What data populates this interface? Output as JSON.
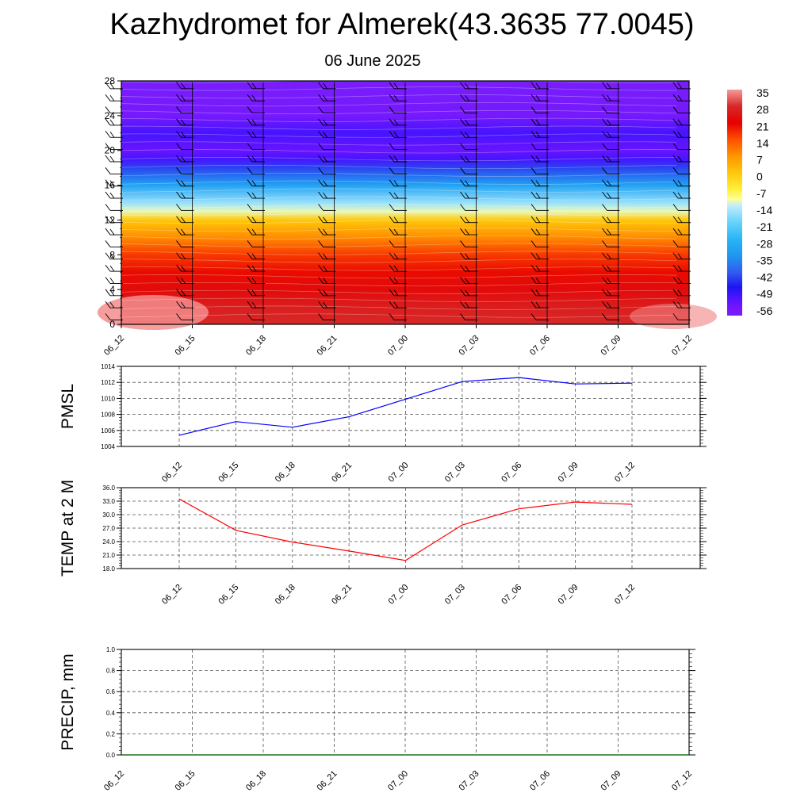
{
  "page": {
    "title": "Kazhydromet for Almerek(43.3635 77.0045)",
    "subtitle": "06 June 2025"
  },
  "time_labels": [
    "06_12",
    "06_15",
    "06_18",
    "06_21",
    "07_00",
    "07_03",
    "07_06",
    "07_09",
    "07_12"
  ],
  "chart_data": [
    {
      "type": "heatmap",
      "title": "",
      "xlabel": "",
      "ylabel": "",
      "x": [
        "06_12",
        "06_15",
        "06_18",
        "06_21",
        "07_00",
        "07_03",
        "07_06",
        "07_09",
        "07_12"
      ],
      "yticks": [
        0,
        4,
        8,
        12,
        16,
        20,
        24,
        28
      ],
      "ylim": [
        0,
        28
      ],
      "vertical_profile": [
        {
          "height": 0,
          "value": 28
        },
        {
          "height": 2,
          "value": 26
        },
        {
          "height": 4,
          "value": 23
        },
        {
          "height": 6,
          "value": 20
        },
        {
          "height": 8,
          "value": 16
        },
        {
          "height": 10,
          "value": 8
        },
        {
          "height": 12,
          "value": 0
        },
        {
          "height": 13,
          "value": -12
        },
        {
          "height": 14,
          "value": -17
        },
        {
          "height": 16,
          "value": -32
        },
        {
          "height": 18,
          "value": -44
        },
        {
          "height": 19,
          "value": -52
        },
        {
          "height": 20,
          "value": -55
        },
        {
          "height": 22,
          "value": -52
        },
        {
          "height": 24,
          "value": -58
        },
        {
          "height": 28,
          "value": -60
        }
      ],
      "colorbar": {
        "labels": [
          "35",
          "28",
          "21",
          "14",
          "7",
          "0",
          "-7",
          "-14",
          "-21",
          "-28",
          "-35",
          "-42",
          "-49",
          "-56"
        ]
      },
      "wind_barbs": true
    },
    {
      "type": "line",
      "title": "",
      "xlabel": "",
      "ylabel": "PMSL",
      "x": [
        "06_12",
        "06_15",
        "06_18",
        "06_21",
        "07_00",
        "07_03",
        "07_06",
        "07_09",
        "07_12"
      ],
      "series": [
        {
          "values": [
            1005.4,
            1007.1,
            1006.4,
            1007.7,
            1009.9,
            1012.1,
            1012.6,
            1011.8,
            1011.9
          ]
        }
      ],
      "ylim": [
        1004,
        1014
      ],
      "yticks": [
        "1004",
        "1006",
        "1008",
        "1010",
        "1012",
        "1014"
      ],
      "grid": true,
      "color": "#0000ff"
    },
    {
      "type": "line",
      "title": "",
      "xlabel": "",
      "ylabel": "TEMP at 2 M",
      "x": [
        "06_12",
        "06_15",
        "06_18",
        "06_21",
        "07_00",
        "07_03",
        "07_06",
        "07_09",
        "07_12"
      ],
      "series": [
        {
          "values": [
            33.5,
            26.5,
            23.9,
            21.9,
            19.8,
            27.7,
            31.3,
            32.8,
            32.3
          ]
        }
      ],
      "ylim": [
        18,
        36
      ],
      "yticks": [
        "18.0",
        "21.0",
        "24.0",
        "27.0",
        "30.0",
        "33.0",
        "36.0"
      ],
      "grid": true,
      "color": "#ff0000"
    },
    {
      "type": "line",
      "title": "",
      "xlabel": "",
      "ylabel": "PRECIP, mm",
      "x": [
        "06_12",
        "06_15",
        "06_18",
        "06_21",
        "07_00",
        "07_03",
        "07_06",
        "07_09",
        "07_12"
      ],
      "series": [
        {
          "values": [
            0,
            0,
            0,
            0,
            0,
            0,
            0,
            0,
            0
          ]
        }
      ],
      "ylim": [
        0,
        1
      ],
      "yticks": [
        "0.0",
        "0.2",
        "0.4",
        "0.6",
        "0.8",
        "1.0"
      ],
      "grid": true,
      "color": "#006400"
    }
  ]
}
